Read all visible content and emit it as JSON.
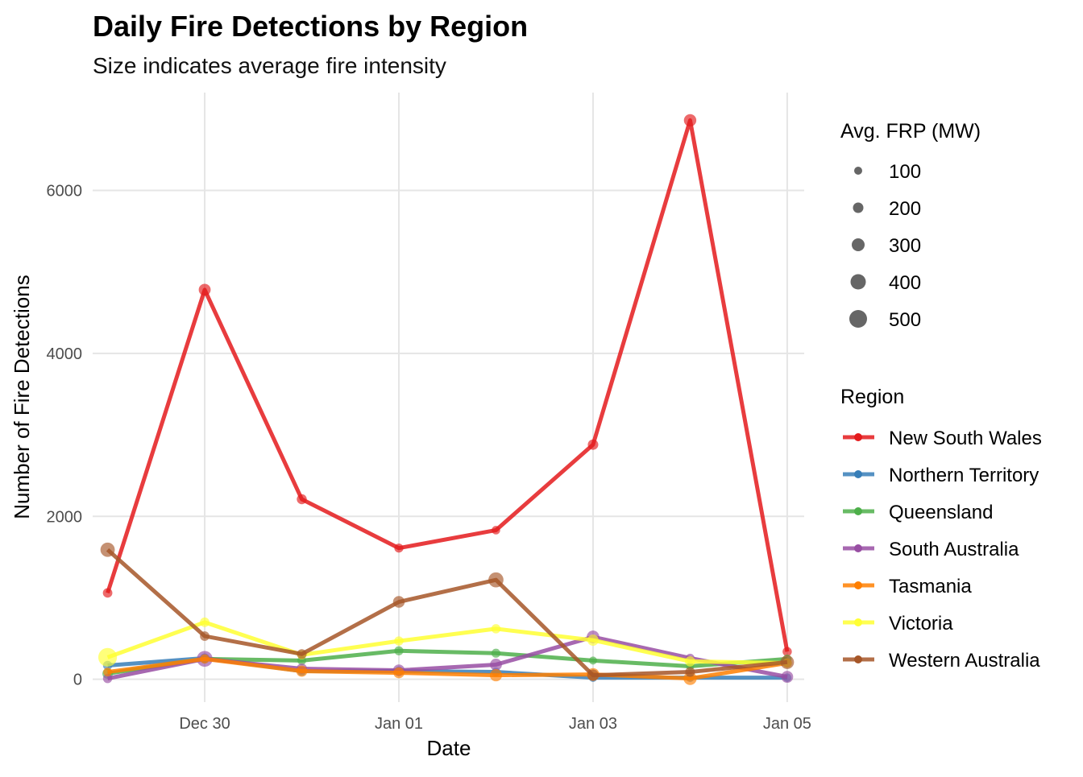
{
  "chart_data": {
    "type": "line",
    "title": "Daily Fire Detections by Region",
    "subtitle": "Size indicates average fire intensity",
    "xlabel": "Date",
    "ylabel": "Number of Fire Detections",
    "x": [
      "2019-12-29",
      "2019-12-30",
      "2019-12-31",
      "2020-01-01",
      "2020-01-02",
      "2020-01-03",
      "2020-01-04",
      "2020-01-05"
    ],
    "x_ticks": [
      {
        "date": "2019-12-30",
        "label": "Dec 30"
      },
      {
        "date": "2020-01-01",
        "label": "Jan 01"
      },
      {
        "date": "2020-01-03",
        "label": "Jan 03"
      },
      {
        "date": "2020-01-05",
        "label": "Jan 05"
      }
    ],
    "y_ticks": [
      0,
      2000,
      4000,
      6000
    ],
    "ylim": [
      -280,
      7200
    ],
    "grid": true,
    "legend_placement": "right",
    "size_legend": {
      "title": "Avg. FRP (MW)",
      "values": [
        100,
        200,
        300,
        400,
        500
      ]
    },
    "color_legend_title": "Region",
    "series": [
      {
        "name": "New South Wales",
        "color": "#E41A1C",
        "values": [
          1060,
          4780,
          2210,
          1610,
          1830,
          2880,
          6860,
          340
        ],
        "frp": [
          160,
          260,
          180,
          140,
          120,
          200,
          280,
          150
        ]
      },
      {
        "name": "Northern Territory",
        "color": "#377EB8",
        "values": [
          170,
          260,
          100,
          100,
          90,
          20,
          20,
          20
        ],
        "frp": [
          150,
          160,
          150,
          150,
          130,
          120,
          120,
          120
        ]
      },
      {
        "name": "Queensland",
        "color": "#4DAF4A",
        "values": [
          70,
          250,
          230,
          350,
          320,
          230,
          160,
          250
        ],
        "frp": [
          200,
          150,
          130,
          140,
          140,
          100,
          100,
          130
        ]
      },
      {
        "name": "South Australia",
        "color": "#984EA3",
        "values": [
          10,
          250,
          130,
          110,
          180,
          520,
          260,
          30
        ],
        "frp": [
          150,
          420,
          200,
          250,
          260,
          290,
          130,
          260
        ]
      },
      {
        "name": "Tasmania",
        "color": "#FF7F00",
        "values": [
          90,
          250,
          100,
          80,
          50,
          60,
          10,
          200
        ],
        "frp": [
          130,
          150,
          230,
          220,
          270,
          290,
          310,
          150
        ]
      },
      {
        "name": "Victoria",
        "color": "#FFFF33",
        "values": [
          270,
          700,
          300,
          470,
          620,
          480,
          220,
          200
        ],
        "frp": [
          540,
          160,
          150,
          150,
          150,
          230,
          190,
          150
        ]
      },
      {
        "name": "Western Australia",
        "color": "#A65628",
        "values": [
          1590,
          530,
          310,
          950,
          1220,
          50,
          90,
          210
        ],
        "frp": [
          360,
          160,
          170,
          250,
          390,
          240,
          170,
          330
        ]
      }
    ]
  }
}
